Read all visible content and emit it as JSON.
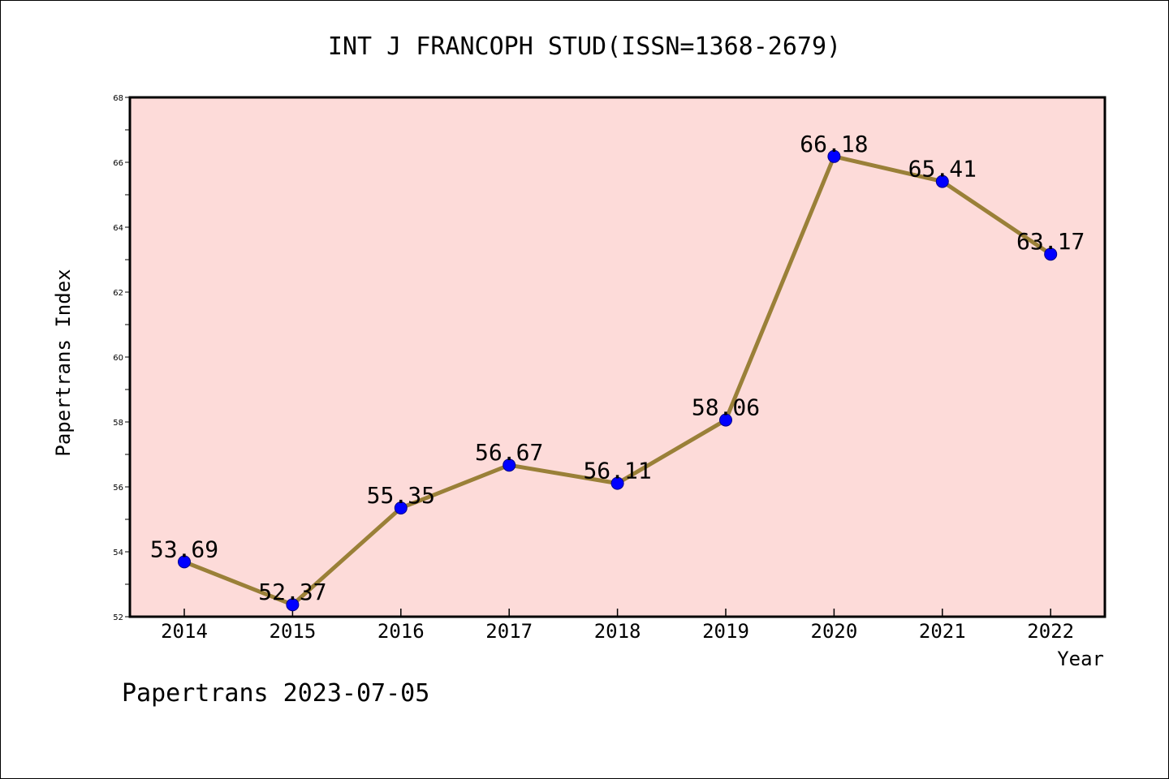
{
  "chart_data": {
    "type": "line",
    "title": "INT J FRANCOPH STUD(ISSN=1368-2679)",
    "xlabel": "Year",
    "ylabel": "Papertrans Index",
    "footer": "Papertrans 2023-07-05",
    "categories": [
      "2014",
      "2015",
      "2016",
      "2017",
      "2018",
      "2019",
      "2020",
      "2021",
      "2022"
    ],
    "series": [
      {
        "values": [
          53.69,
          52.37,
          55.35,
          56.67,
          56.11,
          58.06,
          66.18,
          65.41,
          63.17
        ],
        "labels": [
          "53.69",
          "52.37",
          "55.35",
          "56.67",
          "56.11",
          "58.06",
          "66.18",
          "65.41",
          "63.17"
        ]
      }
    ],
    "ylim": [
      52,
      68
    ],
    "yticks": [
      "52",
      "54",
      "56",
      "58",
      "60",
      "62",
      "64",
      "66",
      "68"
    ],
    "grid": false,
    "colors": {
      "plot_background": "#fddbd9",
      "line": "#9a8038",
      "marker": "#0000ff",
      "axis": "#000000"
    }
  }
}
